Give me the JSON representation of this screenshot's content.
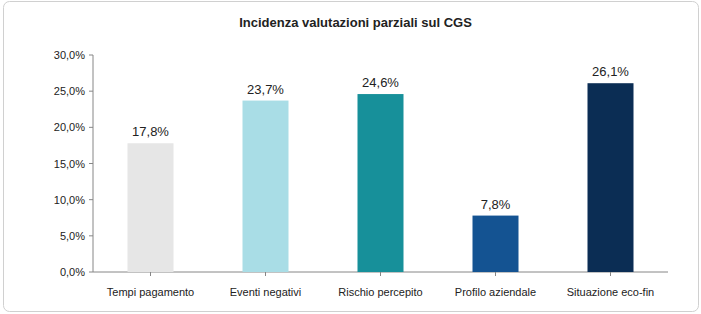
{
  "chart_data": {
    "type": "bar",
    "title": "Incidenza valutazioni parziali sul CGS",
    "categories": [
      "Tempi pagamento",
      "Eventi negativi",
      "Rischio percepito",
      "Profilo aziendale",
      "Situazione eco-fin"
    ],
    "values": [
      17.8,
      23.7,
      24.6,
      7.8,
      26.1
    ],
    "value_labels": [
      "17,8%",
      "23,7%",
      "24,6%",
      "7,8%",
      "26,1%"
    ],
    "colors": [
      "#e6e6e6",
      "#a9dde6",
      "#17909a",
      "#145392",
      "#0b2d54"
    ],
    "ylim": [
      0,
      30
    ],
    "yticks": [
      {
        "value": 0,
        "label": "0,0%"
      },
      {
        "value": 5,
        "label": "5,0%"
      },
      {
        "value": 10,
        "label": "10,0%"
      },
      {
        "value": 15,
        "label": "15,0%"
      },
      {
        "value": 20,
        "label": "20,0%"
      },
      {
        "value": 25,
        "label": "25,0%"
      },
      {
        "value": 30,
        "label": "30,0%"
      }
    ],
    "grid": false,
    "data_labels": true
  }
}
